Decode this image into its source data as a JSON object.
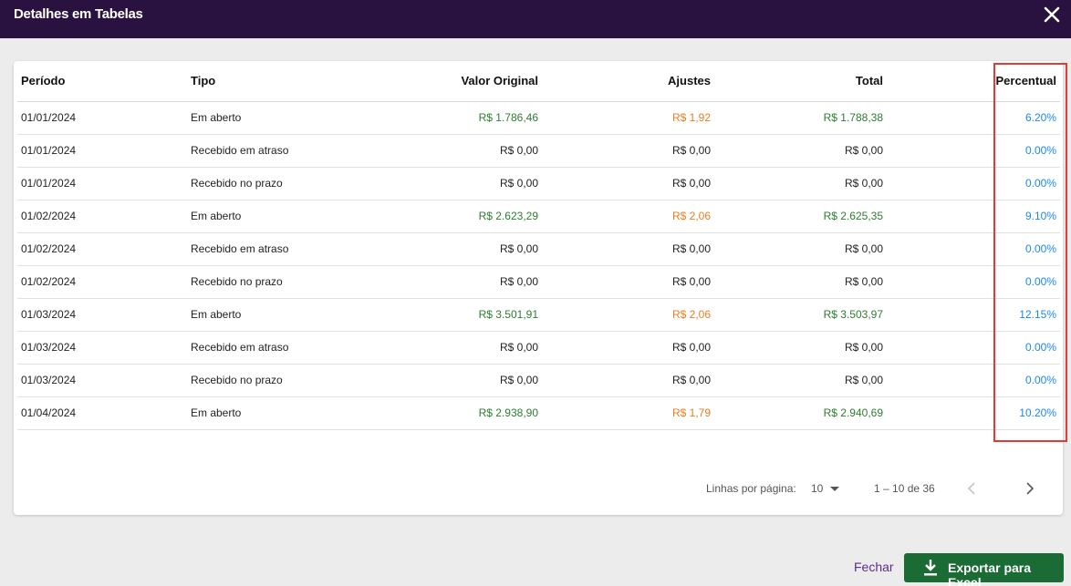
{
  "dialog": {
    "title": "Detalhes em Tabelas",
    "close_icon": "close-icon"
  },
  "table": {
    "headers": [
      "Período",
      "Tipo",
      "Valor Original",
      "Ajustes",
      "Total",
      "Percentual"
    ],
    "rows": [
      [
        "01/01/2024",
        "Em aberto",
        "R$ 1.786,46",
        "R$ 1,92",
        "R$ 1.788,38",
        "6.20%"
      ],
      [
        "01/01/2024",
        "Recebido em atraso",
        "R$ 0,00",
        "R$ 0,00",
        "R$ 0,00",
        "0.00%"
      ],
      [
        "01/01/2024",
        "Recebido no prazo",
        "R$ 0,00",
        "R$ 0,00",
        "R$ 0,00",
        "0.00%"
      ],
      [
        "01/02/2024",
        "Em aberto",
        "R$ 2.623,29",
        "R$ 2,06",
        "R$ 2.625,35",
        "9.10%"
      ],
      [
        "01/02/2024",
        "Recebido em atraso",
        "R$ 0,00",
        "R$ 0,00",
        "R$ 0,00",
        "0.00%"
      ],
      [
        "01/02/2024",
        "Recebido no prazo",
        "R$ 0,00",
        "R$ 0,00",
        "R$ 0,00",
        "0.00%"
      ],
      [
        "01/03/2024",
        "Em aberto",
        "R$ 3.501,91",
        "R$ 2,06",
        "R$ 3.503,97",
        "12.15%"
      ],
      [
        "01/03/2024",
        "Recebido em atraso",
        "R$ 0,00",
        "R$ 0,00",
        "R$ 0,00",
        "0.00%"
      ],
      [
        "01/03/2024",
        "Recebido no prazo",
        "R$ 0,00",
        "R$ 0,00",
        "R$ 0,00",
        "0.00%"
      ],
      [
        "01/04/2024",
        "Em aberto",
        "R$ 2.938,90",
        "R$ 1,79",
        "R$ 2.940,69",
        "10.20%"
      ]
    ]
  },
  "pagination": {
    "rows_label": "Linhas por página:",
    "rows_value": "10",
    "range": "1 – 10 de 36"
  },
  "footer": {
    "close_label": "Fechar",
    "export_label": "Exportar para Excel"
  },
  "colors": {
    "header_bg": "#2a1240",
    "positive": "#2e7d32",
    "adjustment": "#e67e22",
    "percent": "#1e88e5",
    "highlight": "#e53935",
    "export_bg": "#1b6b35",
    "link": "#5b2d90"
  }
}
